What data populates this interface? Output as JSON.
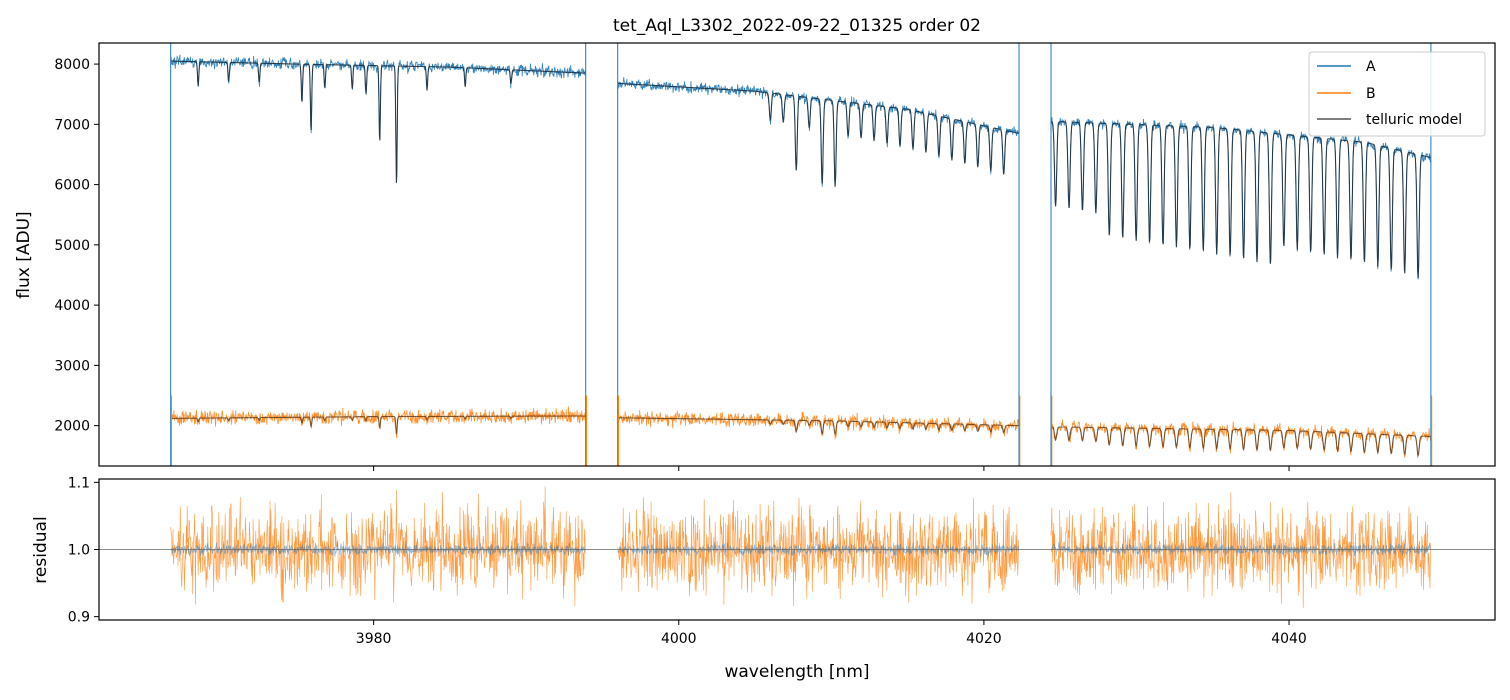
{
  "chart_data": {
    "type": "line",
    "title": "tet_Aql_L3302_2022-09-22_01325  order 02",
    "xlabel": "wavelength [nm]",
    "xlim": [
      3962.0,
      4053.5
    ],
    "xticks": [
      "3980",
      "4000",
      "4020",
      "4040"
    ],
    "segments": [
      [
        3966.7,
        3993.9
      ],
      [
        3996.0,
        4022.3
      ],
      [
        4024.4,
        4049.3
      ]
    ],
    "top_panel": {
      "ylabel": "flux [ADU]",
      "ylim": [
        1330,
        8350
      ],
      "yticks": [
        "2000",
        "3000",
        "4000",
        "5000",
        "6000",
        "7000",
        "8000"
      ],
      "legend_position": "top-right",
      "series": [
        {
          "name": "A",
          "color": "#1f77b4",
          "continuum": [
            [
              3966.7,
              8050
            ],
            [
              3975,
              8000
            ],
            [
              3985,
              7950
            ],
            [
              3993.9,
              7850
            ],
            [
              3996.0,
              7680
            ],
            [
              4005,
              7550
            ],
            [
              4015,
              7250
            ],
            [
              4022.3,
              6850
            ],
            [
              4024.4,
              7050
            ],
            [
              4035,
              6950
            ],
            [
              4045,
              6700
            ],
            [
              4049.3,
              6450
            ]
          ]
        },
        {
          "name": "B",
          "color": "#ff7f0e",
          "continuum": [
            [
              3966.7,
              2120
            ],
            [
              3980,
              2150
            ],
            [
              3993.9,
              2160
            ],
            [
              3996.0,
              2130
            ],
            [
              4010,
              2080
            ],
            [
              4022.3,
              2000
            ],
            [
              4024.4,
              1980
            ],
            [
              4040,
              1920
            ],
            [
              4049.3,
              1820
            ]
          ]
        },
        {
          "name": "telluric model",
          "color": "#555555"
        }
      ]
    },
    "bottom_panel": {
      "ylabel": "residual",
      "ylim": [
        0.895,
        1.105
      ],
      "yticks": [
        "0.9",
        "1.0",
        "1.1"
      ],
      "reference_line": 1.0
    }
  }
}
